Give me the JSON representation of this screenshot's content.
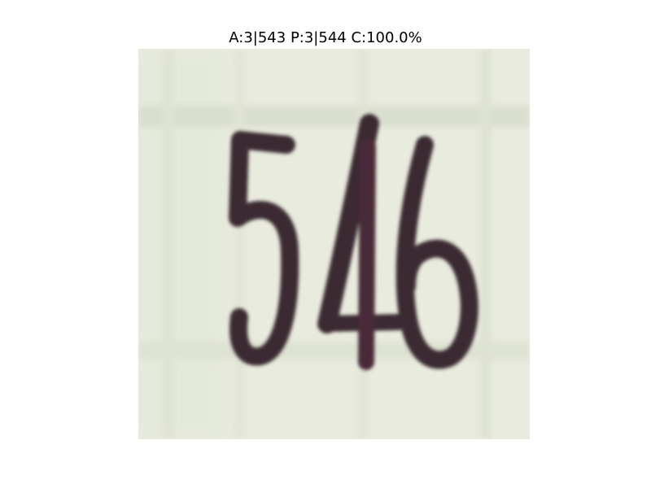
{
  "title": "A:3|543 P:3|544 C:100.0%",
  "image": {
    "subject": "handwritten-digits-on-grid-paper",
    "paper_color": "#e9ebdf",
    "grid_color": "#d6d9c8",
    "ink_color": "#3a2a30"
  }
}
